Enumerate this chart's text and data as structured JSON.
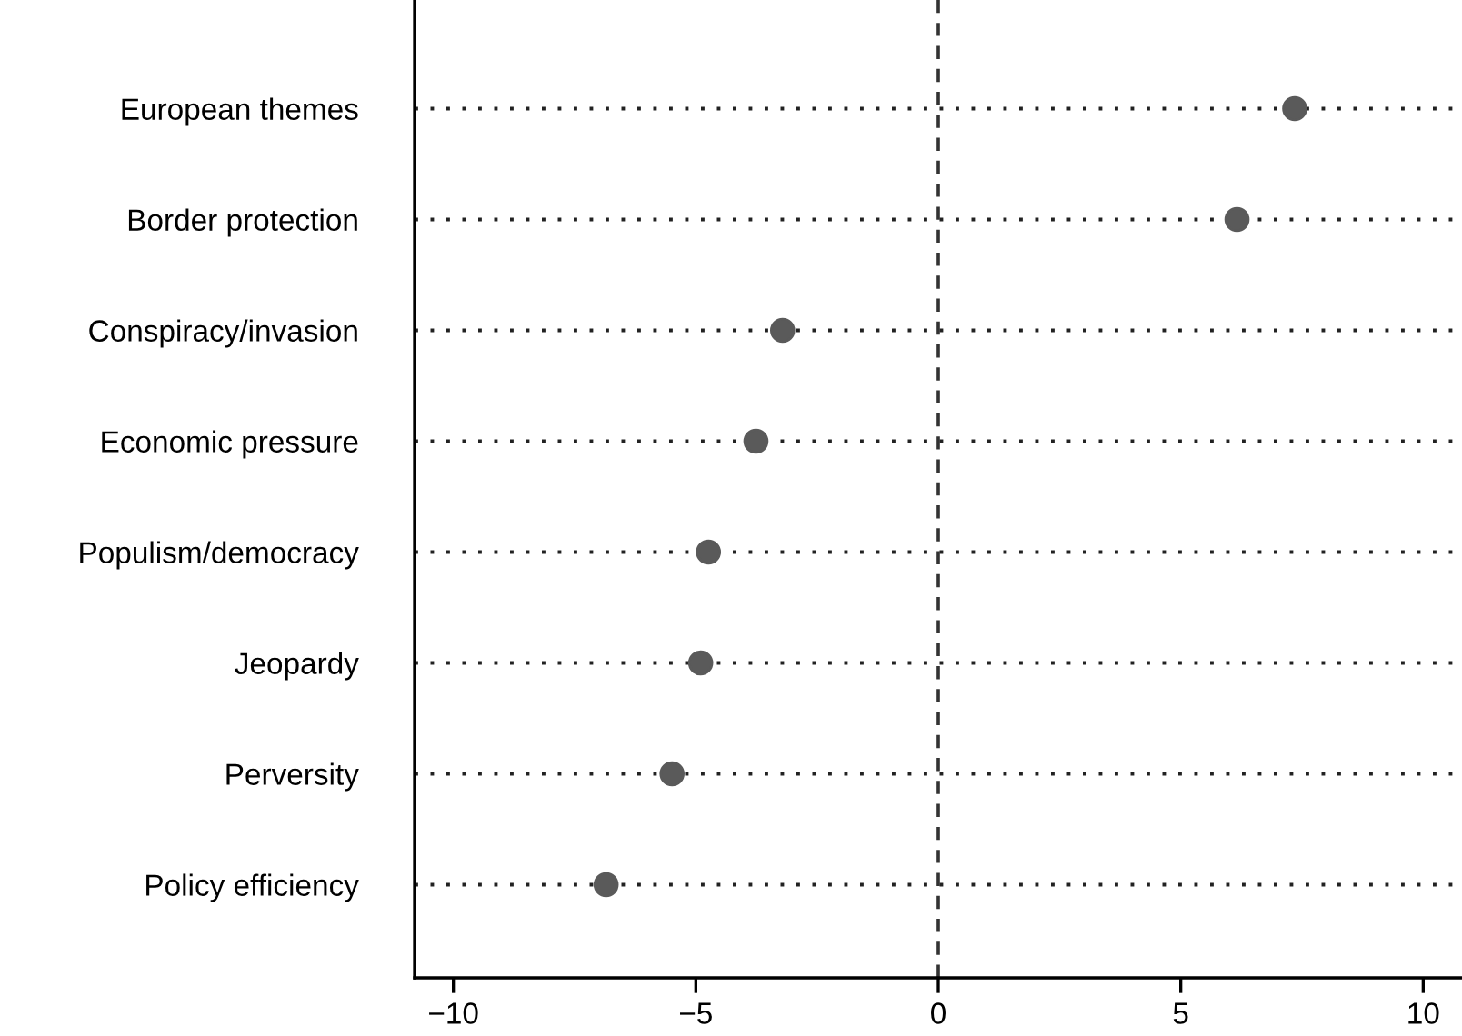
{
  "chart_data": {
    "type": "scatter",
    "orientation": "horizontal",
    "categories": [
      "European themes",
      "Border protection",
      "Conspiracy/invasion",
      "Economic pressure",
      "Populism/democracy",
      "Jeopardy",
      "Perversity",
      "Policy efficiency"
    ],
    "values": [
      7.35,
      6.16,
      -3.21,
      -3.76,
      -4.74,
      -4.9,
      -5.49,
      -6.85
    ],
    "color": "#5a5a5a",
    "marker": "circle",
    "grid": "y",
    "xlim": [
      -10.8,
      10.8
    ],
    "xticks": [
      {
        "value": -10,
        "label": "−10"
      },
      {
        "value": -5,
        "label": "−5"
      },
      0,
      5,
      10
    ],
    "ref_lines": [
      {
        "axis": "x",
        "value": 0,
        "line_style": "dashed",
        "color": "#333333"
      }
    ]
  }
}
